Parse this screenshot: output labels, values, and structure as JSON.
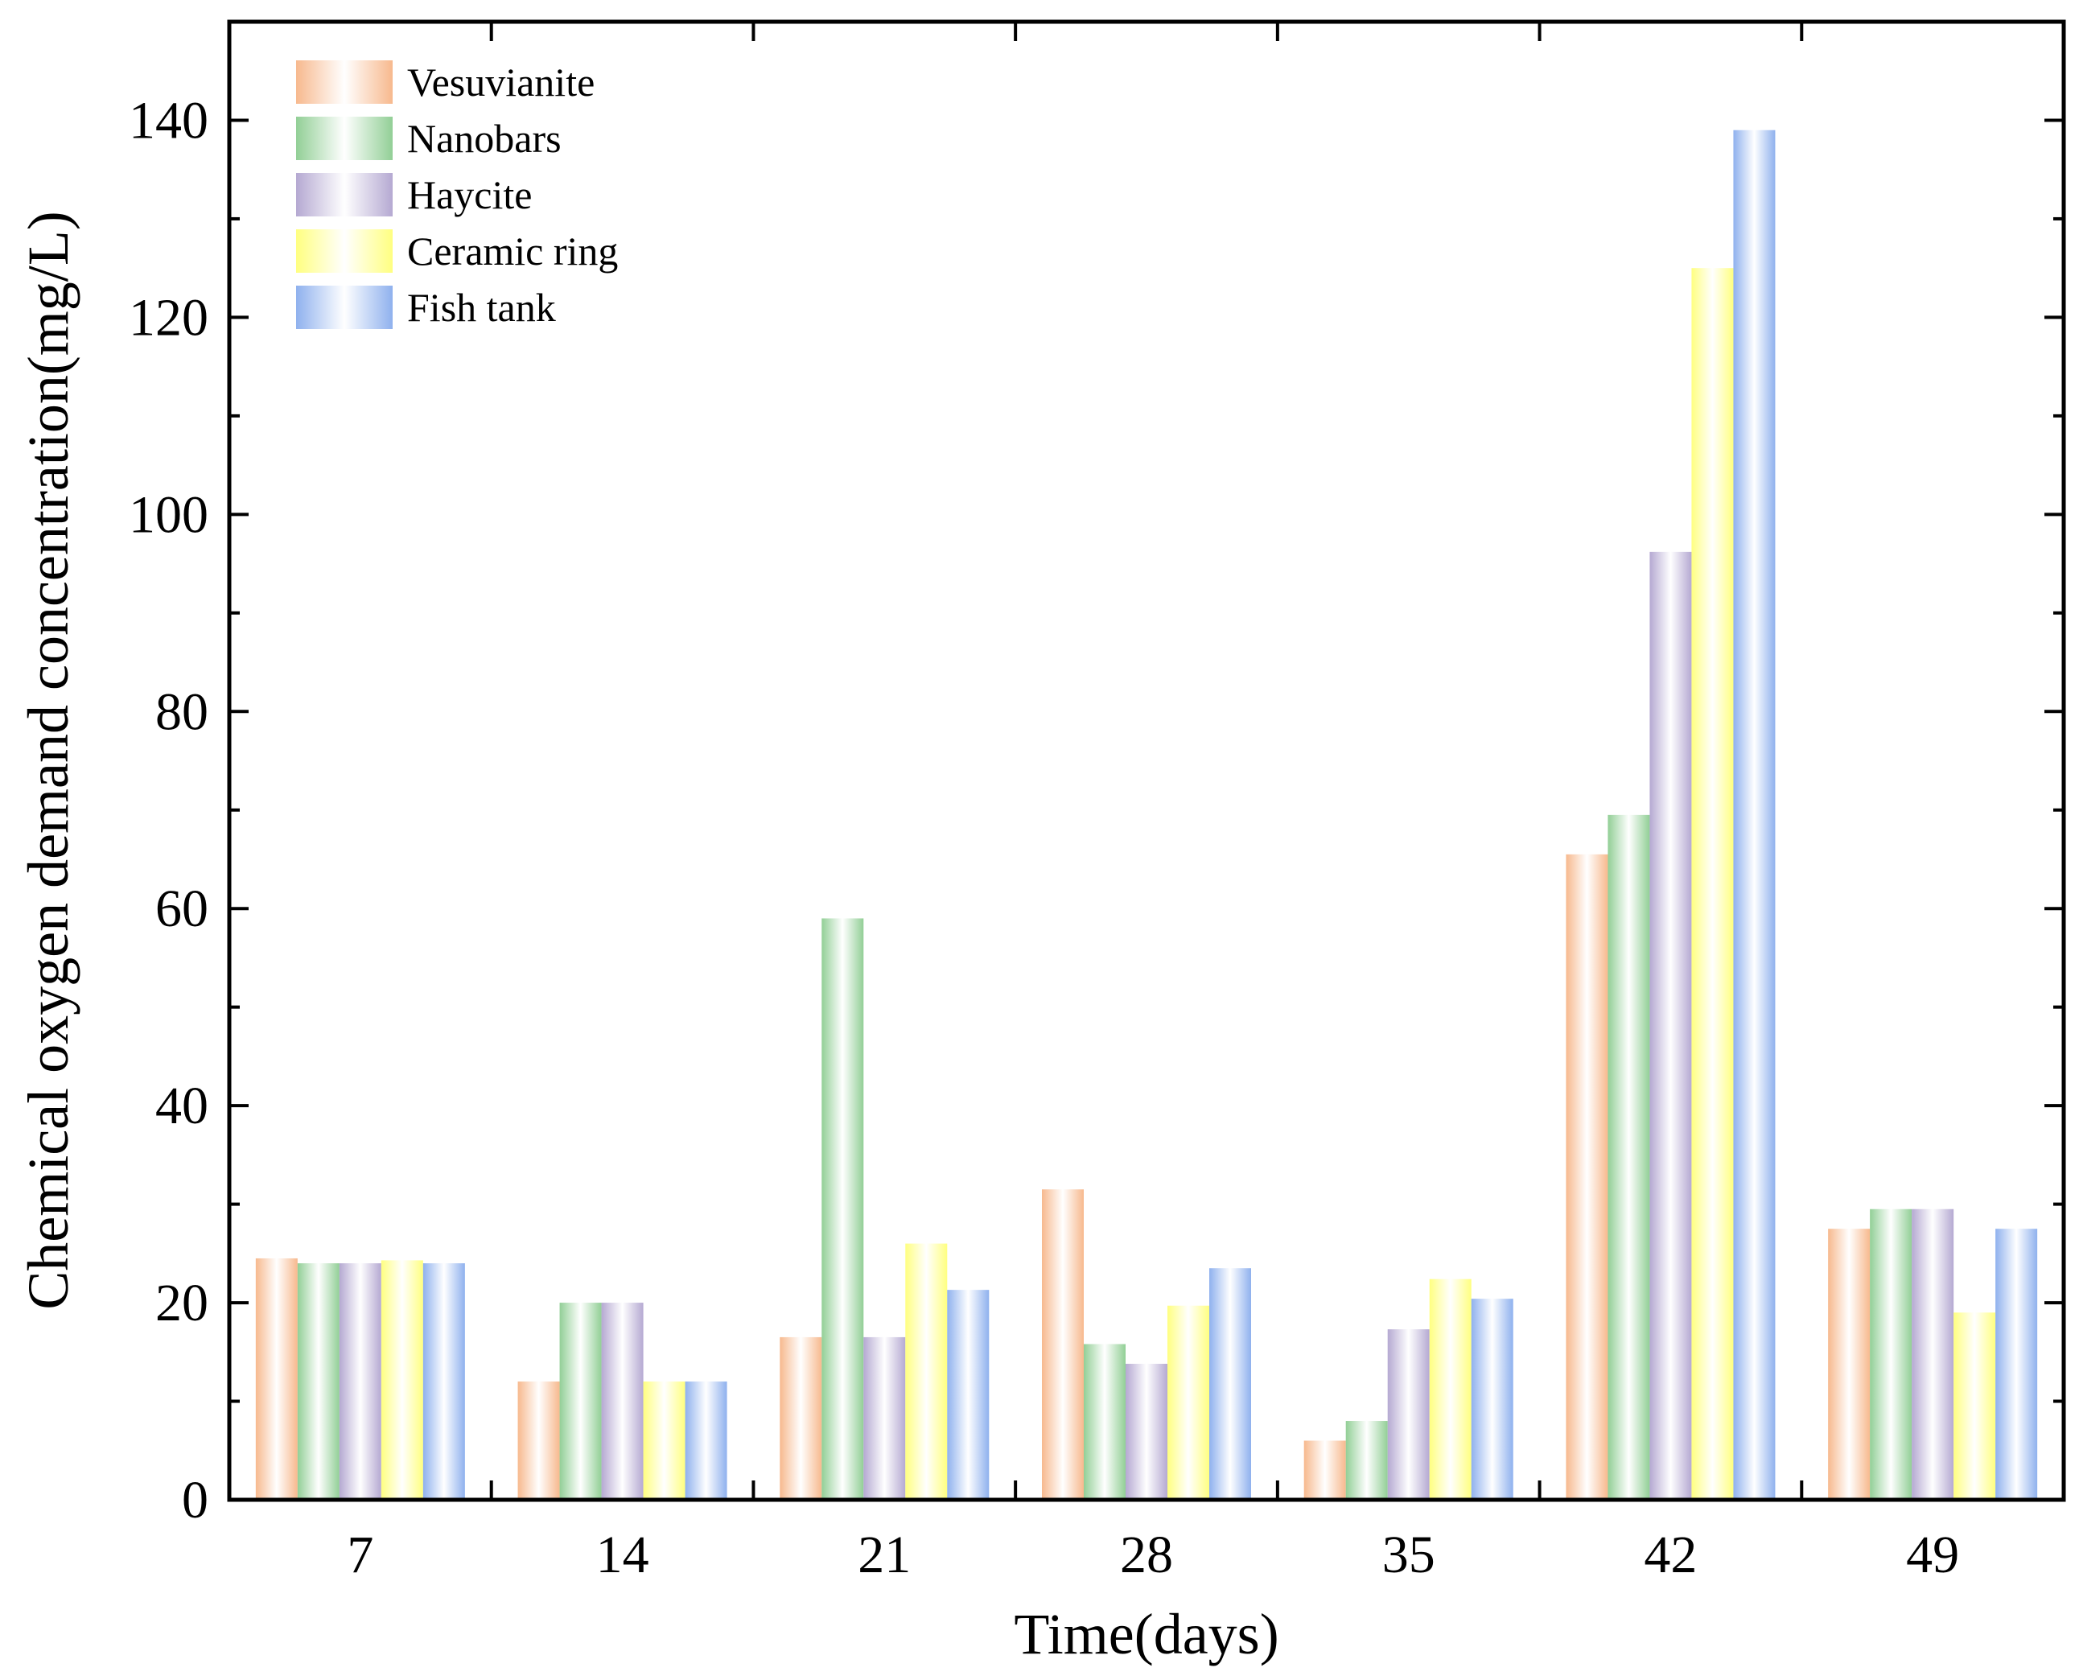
{
  "chart_data": {
    "type": "bar",
    "title": "",
    "xlabel": "Time(days)",
    "ylabel": "Chemical oxygen demand concentration(mg/L)",
    "categories": [
      "7",
      "14",
      "21",
      "28",
      "35",
      "42",
      "49"
    ],
    "ylim": [
      0,
      150
    ],
    "yticks": [
      0,
      20,
      40,
      60,
      80,
      100,
      120,
      140
    ],
    "grid": false,
    "legend_position": "top-left",
    "series": [
      {
        "name": "Vesuvianite",
        "color": "#f7b98e",
        "values": [
          24.5,
          12,
          16.5,
          31.5,
          6,
          65.5,
          27.5
        ]
      },
      {
        "name": "Nanobars",
        "color": "#92cf96",
        "values": [
          24,
          20,
          59,
          15.8,
          8,
          69.5,
          29.5
        ]
      },
      {
        "name": "Haycite",
        "color": "#b5a9d2",
        "values": [
          24,
          20,
          16.5,
          13.8,
          17.3,
          96.2,
          29.5
        ]
      },
      {
        "name": "Ceramic ring",
        "color": "#ffff80",
        "values": [
          24.3,
          12,
          26,
          19.7,
          22.4,
          125,
          19
        ]
      },
      {
        "name": "Fish tank",
        "color": "#8fb1ee",
        "values": [
          24,
          12,
          21.3,
          23.5,
          20.4,
          139,
          27.5
        ]
      }
    ]
  }
}
